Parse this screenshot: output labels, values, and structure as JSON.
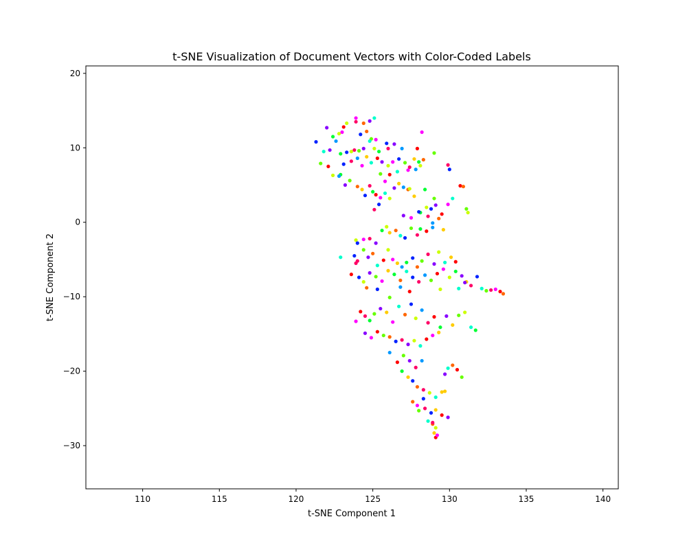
{
  "chart_data": {
    "type": "scatter",
    "title": "t-SNE Visualization of Document Vectors with Color-Coded Labels",
    "xlabel": "t-SNE Component 1",
    "ylabel": "t-SNE Component 2",
    "xlim": [
      106.3,
      141.0
    ],
    "ylim": [
      -35.8,
      21.0
    ],
    "xticks": [
      110,
      115,
      120,
      125,
      130,
      135,
      140
    ],
    "yticks": [
      20,
      10,
      0,
      -10,
      -20,
      -30
    ],
    "grid": false,
    "legend": "none",
    "point_colors": [
      "#ff0000",
      "#ff6600",
      "#ffcc00",
      "#ccff00",
      "#66ff00",
      "#00ff33",
      "#00ffcc",
      "#0099ff",
      "#0022ff",
      "#8800ff",
      "#ff00ff",
      "#ff0066"
    ],
    "points": [
      [
        121.3,
        10.8,
        8
      ],
      [
        121.8,
        9.5,
        6
      ],
      [
        122.0,
        12.7,
        9
      ],
      [
        122.4,
        11.5,
        5
      ],
      [
        122.8,
        11.9,
        3
      ],
      [
        122.6,
        10.9,
        7
      ],
      [
        123.1,
        12.8,
        0
      ],
      [
        123.3,
        13.3,
        3
      ],
      [
        123.9,
        14.0,
        10
      ],
      [
        123.9,
        13.5,
        11
      ],
      [
        124.4,
        13.3,
        1
      ],
      [
        124.8,
        13.6,
        9
      ],
      [
        125.1,
        14.0,
        6
      ],
      [
        124.6,
        12.2,
        1
      ],
      [
        124.9,
        11.2,
        4
      ],
      [
        125.2,
        11.1,
        10
      ],
      [
        124.2,
        11.8,
        8
      ],
      [
        123.0,
        12.1,
        10
      ],
      [
        122.2,
        9.7,
        9
      ],
      [
        122.9,
        9.2,
        5
      ],
      [
        123.3,
        9.4,
        8
      ],
      [
        123.6,
        9.5,
        3
      ],
      [
        123.8,
        9.7,
        11
      ],
      [
        124.1,
        9.6,
        4
      ],
      [
        124.4,
        9.9,
        9
      ],
      [
        124.8,
        10.9,
        6
      ],
      [
        125.1,
        9.9,
        3
      ],
      [
        125.4,
        9.5,
        5
      ],
      [
        125.9,
        10.6,
        8
      ],
      [
        126.4,
        10.5,
        9
      ],
      [
        126.0,
        9.9,
        11
      ],
      [
        121.6,
        7.9,
        4
      ],
      [
        122.1,
        7.5,
        0
      ],
      [
        122.4,
        6.3,
        3
      ],
      [
        122.9,
        6.4,
        5
      ],
      [
        123.1,
        7.8,
        8
      ],
      [
        123.6,
        8.2,
        11
      ],
      [
        124.0,
        8.6,
        7
      ],
      [
        124.3,
        7.6,
        10
      ],
      [
        124.6,
        8.8,
        2
      ],
      [
        124.9,
        8.0,
        6
      ],
      [
        125.3,
        8.6,
        0
      ],
      [
        125.6,
        8.1,
        9
      ],
      [
        126.0,
        7.6,
        3
      ],
      [
        126.3,
        8.1,
        10
      ],
      [
        126.7,
        8.5,
        8
      ],
      [
        127.1,
        8.0,
        4
      ],
      [
        127.4,
        7.4,
        11
      ],
      [
        127.7,
        8.5,
        2
      ],
      [
        128.0,
        8.1,
        5
      ],
      [
        128.3,
        8.4,
        1
      ],
      [
        128.1,
        7.6,
        3
      ],
      [
        127.8,
        7.1,
        7
      ],
      [
        127.3,
        7.0,
        10
      ],
      [
        122.8,
        6.2,
        7
      ],
      [
        123.2,
        5.0,
        9
      ],
      [
        123.5,
        5.6,
        4
      ],
      [
        124.0,
        4.8,
        1
      ],
      [
        124.3,
        4.4,
        2
      ],
      [
        124.5,
        3.6,
        8
      ],
      [
        124.8,
        4.9,
        11
      ],
      [
        125.0,
        4.1,
        5
      ],
      [
        125.2,
        3.7,
        0
      ],
      [
        125.5,
        3.3,
        10
      ],
      [
        125.8,
        3.9,
        6
      ],
      [
        126.1,
        3.2,
        3
      ],
      [
        126.4,
        4.6,
        9
      ],
      [
        126.7,
        5.2,
        2
      ],
      [
        127.0,
        4.7,
        7
      ],
      [
        127.3,
        4.4,
        1
      ],
      [
        125.4,
        2.4,
        8
      ],
      [
        125.1,
        1.7,
        11
      ],
      [
        125.5,
        6.5,
        4
      ],
      [
        125.8,
        5.5,
        10
      ],
      [
        126.1,
        6.4,
        0
      ],
      [
        126.6,
        6.8,
        6
      ],
      [
        127.4,
        4.5,
        3
      ],
      [
        127.7,
        3.5,
        2
      ],
      [
        128.1,
        1.3,
        5
      ],
      [
        128.5,
        2.0,
        3
      ],
      [
        128.8,
        1.8,
        8
      ],
      [
        129.1,
        2.3,
        9
      ],
      [
        129.5,
        1.1,
        0
      ],
      [
        129.9,
        2.4,
        10
      ],
      [
        129.0,
        3.2,
        4
      ],
      [
        129.3,
        0.5,
        1
      ],
      [
        128.6,
        0.8,
        11
      ],
      [
        128.9,
        -0.1,
        7
      ],
      [
        129.6,
        -1.0,
        2
      ],
      [
        130.2,
        3.2,
        6
      ],
      [
        130.7,
        4.9,
        0
      ],
      [
        130.9,
        4.8,
        1
      ],
      [
        131.1,
        1.8,
        4
      ],
      [
        131.2,
        1.3,
        3
      ],
      [
        128.4,
        4.4,
        5
      ],
      [
        128.0,
        1.4,
        8
      ],
      [
        127.5,
        0.6,
        10
      ],
      [
        127.0,
        0.9,
        9
      ],
      [
        128.2,
        12.1,
        10
      ],
      [
        127.9,
        9.9,
        0
      ],
      [
        126.9,
        9.9,
        7
      ],
      [
        130.0,
        7.1,
        8
      ],
      [
        129.9,
        7.7,
        11
      ],
      [
        129.0,
        9.3,
        4
      ],
      [
        123.9,
        -2.4,
        3
      ],
      [
        124.0,
        -2.8,
        8
      ],
      [
        124.4,
        -2.3,
        10
      ],
      [
        124.8,
        -2.2,
        11
      ],
      [
        125.2,
        -2.8,
        9
      ],
      [
        125.6,
        -1.1,
        5
      ],
      [
        125.9,
        -0.6,
        3
      ],
      [
        126.1,
        -1.4,
        2
      ],
      [
        126.5,
        -1.1,
        1
      ],
      [
        126.8,
        -1.8,
        6
      ],
      [
        127.1,
        -2.1,
        8
      ],
      [
        127.5,
        -0.8,
        4
      ],
      [
        127.9,
        -1.7,
        11
      ],
      [
        128.1,
        -0.9,
        5
      ],
      [
        128.5,
        -1.2,
        0
      ],
      [
        128.9,
        -0.7,
        7
      ],
      [
        123.8,
        -4.5,
        8
      ],
      [
        124.0,
        -5.2,
        11
      ],
      [
        124.4,
        -3.7,
        4
      ],
      [
        124.7,
        -4.7,
        9
      ],
      [
        125.0,
        -4.2,
        1
      ],
      [
        125.3,
        -5.8,
        6
      ],
      [
        125.7,
        -5.1,
        0
      ],
      [
        126.0,
        -3.7,
        3
      ],
      [
        126.3,
        -5.0,
        10
      ],
      [
        126.6,
        -5.5,
        2
      ],
      [
        126.9,
        -6.0,
        7
      ],
      [
        127.2,
        -5.4,
        5
      ],
      [
        127.6,
        -4.8,
        8
      ],
      [
        127.9,
        -6.0,
        1
      ],
      [
        128.2,
        -5.2,
        4
      ],
      [
        128.6,
        -4.3,
        11
      ],
      [
        129.0,
        -5.6,
        9
      ],
      [
        129.3,
        -4.0,
        3
      ],
      [
        129.7,
        -5.4,
        6
      ],
      [
        130.1,
        -4.7,
        2
      ],
      [
        130.4,
        -5.3,
        0
      ],
      [
        123.9,
        -5.5,
        11
      ],
      [
        123.6,
        -7.0,
        0
      ],
      [
        124.1,
        -7.4,
        8
      ],
      [
        124.4,
        -8.0,
        3
      ],
      [
        124.8,
        -6.8,
        9
      ],
      [
        125.2,
        -7.3,
        4
      ],
      [
        125.6,
        -7.9,
        10
      ],
      [
        126.0,
        -6.5,
        2
      ],
      [
        126.4,
        -7.0,
        5
      ],
      [
        126.8,
        -7.8,
        1
      ],
      [
        127.2,
        -6.6,
        6
      ],
      [
        127.6,
        -7.4,
        8
      ],
      [
        128.0,
        -8.0,
        11
      ],
      [
        128.4,
        -7.1,
        7
      ],
      [
        128.8,
        -7.8,
        4
      ],
      [
        129.2,
        -6.9,
        0
      ],
      [
        129.6,
        -6.3,
        10
      ],
      [
        130.0,
        -7.4,
        3
      ],
      [
        130.4,
        -6.6,
        5
      ],
      [
        130.8,
        -7.2,
        9
      ],
      [
        131.1,
        -8.0,
        2
      ],
      [
        131.4,
        -8.5,
        11
      ],
      [
        131.8,
        -7.3,
        8
      ],
      [
        122.9,
        -4.7,
        6
      ],
      [
        124.6,
        -8.8,
        1
      ],
      [
        125.3,
        -9.0,
        8
      ],
      [
        126.1,
        -10.1,
        4
      ],
      [
        126.8,
        -8.7,
        7
      ],
      [
        127.4,
        -9.3,
        0
      ],
      [
        129.4,
        -9.0,
        3
      ],
      [
        130.6,
        -8.9,
        6
      ],
      [
        131.0,
        -8.1,
        9
      ],
      [
        132.1,
        -8.9,
        6
      ],
      [
        132.4,
        -9.2,
        4
      ],
      [
        132.7,
        -9.1,
        11
      ],
      [
        133.0,
        -9.0,
        10
      ],
      [
        133.3,
        -9.3,
        0
      ],
      [
        133.5,
        -9.6,
        1
      ],
      [
        124.2,
        -12.0,
        0
      ],
      [
        124.5,
        -12.6,
        11
      ],
      [
        124.8,
        -13.2,
        5
      ],
      [
        125.1,
        -12.3,
        4
      ],
      [
        125.5,
        -11.6,
        9
      ],
      [
        125.9,
        -12.1,
        2
      ],
      [
        126.3,
        -13.4,
        10
      ],
      [
        126.7,
        -11.3,
        6
      ],
      [
        127.1,
        -12.4,
        1
      ],
      [
        127.5,
        -11.0,
        8
      ],
      [
        127.8,
        -12.9,
        3
      ],
      [
        128.2,
        -11.8,
        7
      ],
      [
        128.6,
        -13.5,
        11
      ],
      [
        129.0,
        -12.7,
        0
      ],
      [
        129.4,
        -14.1,
        5
      ],
      [
        129.8,
        -12.6,
        9
      ],
      [
        130.2,
        -13.8,
        2
      ],
      [
        130.6,
        -12.5,
        4
      ],
      [
        131.0,
        -12.1,
        3
      ],
      [
        131.4,
        -14.1,
        6
      ],
      [
        131.7,
        -14.5,
        5
      ],
      [
        123.9,
        -13.3,
        10
      ],
      [
        124.5,
        -14.9,
        9
      ],
      [
        124.9,
        -15.5,
        10
      ],
      [
        125.3,
        -14.7,
        0
      ],
      [
        125.7,
        -15.2,
        4
      ],
      [
        126.1,
        -15.4,
        1
      ],
      [
        126.5,
        -16.0,
        8
      ],
      [
        126.9,
        -15.8,
        11
      ],
      [
        127.3,
        -16.4,
        9
      ],
      [
        127.7,
        -15.9,
        3
      ],
      [
        128.1,
        -16.6,
        6
      ],
      [
        128.5,
        -15.7,
        0
      ],
      [
        128.9,
        -15.2,
        10
      ],
      [
        129.3,
        -14.8,
        2
      ],
      [
        126.1,
        -17.5,
        7
      ],
      [
        126.6,
        -18.8,
        0
      ],
      [
        127.0,
        -17.9,
        4
      ],
      [
        127.4,
        -18.6,
        9
      ],
      [
        127.8,
        -19.5,
        11
      ],
      [
        128.2,
        -18.6,
        7
      ],
      [
        126.9,
        -20.0,
        5
      ],
      [
        127.3,
        -20.8,
        2
      ],
      [
        127.6,
        -21.3,
        8
      ],
      [
        127.9,
        -22.1,
        1
      ],
      [
        128.3,
        -22.5,
        11
      ],
      [
        128.7,
        -22.9,
        3
      ],
      [
        129.1,
        -23.5,
        6
      ],
      [
        129.5,
        -22.8,
        2
      ],
      [
        129.9,
        -19.6,
        6
      ],
      [
        130.2,
        -19.2,
        1
      ],
      [
        130.5,
        -19.8,
        0
      ],
      [
        130.8,
        -20.8,
        4
      ],
      [
        129.7,
        -20.4,
        9
      ],
      [
        127.6,
        -24.1,
        1
      ],
      [
        128.0,
        -25.3,
        4
      ],
      [
        128.4,
        -25.0,
        11
      ],
      [
        128.8,
        -25.6,
        8
      ],
      [
        129.1,
        -25.2,
        2
      ],
      [
        129.5,
        -25.9,
        0
      ],
      [
        129.9,
        -26.2,
        9
      ],
      [
        128.6,
        -26.7,
        6
      ],
      [
        128.9,
        -27.1,
        1
      ],
      [
        129.1,
        -27.6,
        3
      ],
      [
        129.0,
        -28.3,
        2
      ],
      [
        129.1,
        -28.9,
        0
      ],
      [
        129.2,
        -28.6,
        10
      ],
      [
        128.9,
        -26.9,
        11
      ],
      [
        127.9,
        -24.6,
        10
      ],
      [
        128.3,
        -23.7,
        8
      ],
      [
        129.7,
        -22.7,
        2
      ]
    ]
  }
}
